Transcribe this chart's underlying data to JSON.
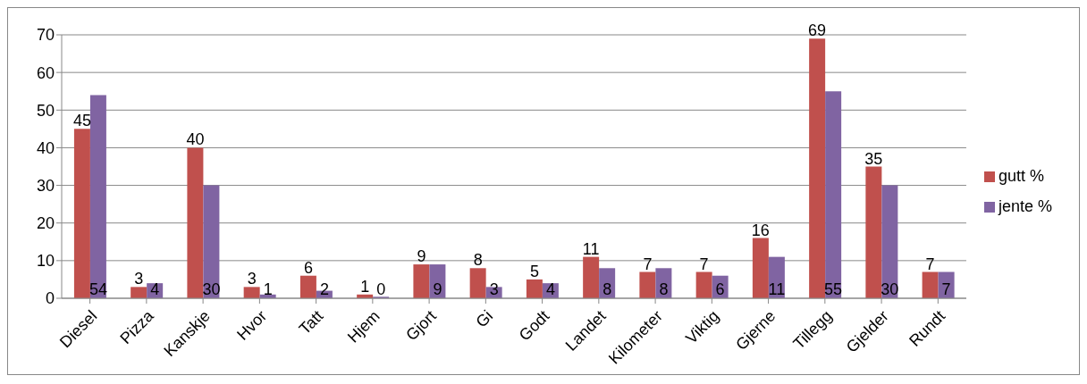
{
  "chart_data": {
    "type": "bar",
    "categories": [
      "Diesel",
      "Pizza",
      "Kanskje",
      "Hvor",
      "Tatt",
      "Hjem",
      "Gjort",
      "Gi",
      "Godt",
      "Landet",
      "Kilometer",
      "Viktig",
      "Gjerne",
      "Tillegg",
      "Gjelder",
      "Rundt"
    ],
    "series": [
      {
        "name": "gutt %",
        "color": "#c0504d",
        "values": [
          45,
          3,
          40,
          3,
          6,
          1,
          9,
          8,
          5,
          11,
          7,
          7,
          16,
          69,
          35,
          7
        ],
        "value_labels": [
          "45",
          "3",
          "40",
          "3",
          "6",
          "1",
          "9",
          "8",
          "5",
          "11",
          "7",
          "7",
          "16",
          "69",
          "35",
          "7"
        ]
      },
      {
        "name": "jente %",
        "color": "#8064a2",
        "values": [
          54,
          4,
          30,
          1,
          2,
          0.4,
          9,
          3,
          4,
          8,
          8,
          6,
          11,
          55,
          30,
          7
        ],
        "value_labels": [
          "54",
          "4",
          "30",
          "1",
          "2",
          "0",
          "9",
          "3",
          "4",
          "8",
          "8",
          "6",
          "11",
          "55",
          "30",
          "7"
        ]
      }
    ],
    "ylim": [
      0,
      70
    ],
    "yticks": [
      0,
      10,
      20,
      30,
      40,
      50,
      60,
      70
    ],
    "grid": "y",
    "legend": "right"
  }
}
